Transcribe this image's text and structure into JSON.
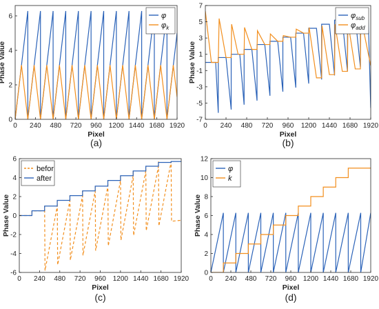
{
  "chart_data": [
    {
      "panel_label": "(a)",
      "type": "line",
      "xlabel": "Pixel",
      "ylabel": "Phase Value",
      "xlim": [
        0,
        1920
      ],
      "ylim": [
        0,
        6.6
      ],
      "xticks": [
        "0",
        "240",
        "480",
        "720",
        "960",
        "1200",
        "1440",
        "1680",
        "1920"
      ],
      "yticks": [
        "0",
        "2",
        "4",
        "6"
      ],
      "legend_position": "top-right",
      "grid": false,
      "series": [
        {
          "name": "φ",
          "color": "#2a62b8",
          "x": [
            0,
            150,
            150,
            300,
            300,
            450,
            450,
            600,
            600,
            750,
            750,
            900,
            900,
            1050,
            1050,
            1200,
            1200,
            1350,
            1350,
            1500,
            1500,
            1650,
            1650,
            1800,
            1800,
            1920
          ],
          "y": [
            0,
            6.28,
            0,
            6.28,
            0,
            6.28,
            0,
            6.28,
            0,
            6.28,
            0,
            6.28,
            0,
            6.28,
            0,
            6.28,
            0,
            6.28,
            0,
            6.28,
            0,
            6.28,
            0,
            6.28,
            0,
            5.0
          ]
        },
        {
          "name": "φk",
          "color": "#f28e1c",
          "x": [
            0,
            75,
            150,
            225,
            300,
            375,
            450,
            525,
            600,
            675,
            750,
            825,
            900,
            975,
            1050,
            1125,
            1200,
            1275,
            1350,
            1425,
            1500,
            1575,
            1650,
            1725,
            1800,
            1875,
            1920
          ],
          "y": [
            0,
            3.14,
            0,
            3.14,
            0,
            3.14,
            0,
            3.14,
            0,
            3.14,
            0,
            3.14,
            0,
            3.14,
            0,
            3.14,
            0,
            3.14,
            0,
            3.14,
            0,
            3.14,
            0,
            3.14,
            0,
            3.14,
            1.3
          ]
        }
      ]
    },
    {
      "panel_label": "(b)",
      "type": "line",
      "xlabel": "Pixel",
      "ylabel": "Phase Value",
      "xlim": [
        0,
        1920
      ],
      "ylim": [
        -7,
        7
      ],
      "xticks": [
        "0",
        "240",
        "480",
        "720",
        "960",
        "1200",
        "1440",
        "1680",
        "1920"
      ],
      "yticks": [
        "-7",
        "-5",
        "-3",
        "-1",
        "1",
        "3",
        "5",
        "7"
      ],
      "legend_position": "top-right",
      "grid": false,
      "series": [
        {
          "name": "φsub",
          "color": "#2a62b8",
          "x": [
            0,
            120,
            150,
            150,
            240,
            300,
            300,
            400,
            450,
            450,
            540,
            600,
            600,
            690,
            750,
            750,
            840,
            900,
            900,
            990,
            1050,
            1050,
            1140,
            1200,
            1200,
            1290,
            1350,
            1350,
            1440,
            1500,
            1500,
            1590,
            1650,
            1650,
            1740,
            1800,
            1800,
            1890,
            1920
          ],
          "y": [
            0,
            0,
            -6.2,
            0.6,
            0.6,
            -5.8,
            1.0,
            1.0,
            -5.2,
            1.6,
            1.6,
            -4.7,
            2.2,
            2.2,
            -4.1,
            2.6,
            2.6,
            -3.6,
            3.1,
            3.1,
            -3.1,
            3.6,
            3.6,
            -2.6,
            4.2,
            4.2,
            -2.1,
            4.7,
            4.7,
            -1.6,
            5.2,
            5.2,
            -1.1,
            5.6,
            5.6,
            -0.6,
            5.9,
            5.9,
            -5.6
          ]
        },
        {
          "name": "φadd",
          "color": "#f28e1c",
          "x": [
            0,
            70,
            150,
            160,
            240,
            300,
            305,
            380,
            450,
            455,
            540,
            600,
            605,
            690,
            750,
            755,
            840,
            900,
            905,
            990,
            1050,
            1055,
            1140,
            1200,
            1205,
            1290,
            1350,
            1355,
            1440,
            1500,
            1505,
            1590,
            1650,
            1655,
            1740,
            1800,
            1805,
            1920
          ],
          "y": [
            6.3,
            0,
            0,
            5.4,
            0.6,
            0.6,
            4.7,
            1.0,
            1.0,
            4.3,
            1.6,
            1.6,
            3.9,
            2.2,
            2.2,
            3.5,
            2.6,
            2.6,
            3.3,
            3.1,
            3.1,
            4.1,
            3.6,
            3.6,
            4.3,
            -1.9,
            -1.9,
            4.5,
            -1.5,
            -1.5,
            4.7,
            -1.1,
            -1.1,
            5.0,
            -0.8,
            -0.8,
            5.6,
            -0.4
          ]
        }
      ]
    },
    {
      "panel_label": "(c)",
      "type": "line",
      "xlabel": "Pixel",
      "ylabel": "Phase Value",
      "xlim": [
        0,
        1920
      ],
      "ylim": [
        -6,
        6
      ],
      "xticks": [
        "0",
        "240",
        "480",
        "720",
        "960",
        "1200",
        "1440",
        "1680",
        "1920"
      ],
      "yticks": [
        "-6",
        "-4",
        "-2",
        "0",
        "2",
        "4",
        "6"
      ],
      "legend_position": "top-left",
      "grid": false,
      "series": [
        {
          "name": "befor",
          "color": "#f28e1c",
          "dashed": true,
          "x": [
            0,
            150,
            150,
            300,
            300,
            305,
            450,
            450,
            455,
            600,
            600,
            605,
            750,
            750,
            755,
            900,
            900,
            905,
            1050,
            1050,
            1055,
            1200,
            1200,
            1205,
            1350,
            1350,
            1355,
            1500,
            1500,
            1505,
            1650,
            1650,
            1655,
            1800,
            1800,
            1805,
            1920
          ],
          "y": [
            0,
            0,
            0.5,
            0.5,
            1.0,
            -5.8,
            1.0,
            1.6,
            -5.2,
            1.6,
            2.1,
            -4.7,
            2.1,
            2.6,
            -4.2,
            2.6,
            3.1,
            -3.7,
            3.1,
            3.7,
            -3.2,
            3.7,
            4.2,
            -2.6,
            4.2,
            4.7,
            -2.1,
            4.7,
            5.2,
            -1.6,
            5.2,
            5.7,
            -1.1,
            5.7,
            5.7,
            -0.6,
            -0.5
          ]
        },
        {
          "name": "after",
          "color": "#2a62b8",
          "x": [
            0,
            150,
            150,
            300,
            300,
            450,
            450,
            600,
            600,
            750,
            750,
            900,
            900,
            1050,
            1050,
            1200,
            1200,
            1350,
            1350,
            1500,
            1500,
            1650,
            1650,
            1800,
            1800,
            1920
          ],
          "y": [
            0,
            0,
            0.5,
            0.5,
            1.0,
            1.0,
            1.6,
            1.6,
            2.1,
            2.1,
            2.6,
            2.6,
            3.1,
            3.1,
            3.7,
            3.7,
            4.2,
            4.2,
            4.7,
            4.7,
            5.2,
            5.2,
            5.6,
            5.6,
            5.7,
            5.7
          ]
        }
      ]
    },
    {
      "panel_label": "(d)",
      "type": "line",
      "xlabel": "Pixel",
      "ylabel": "Phase Value",
      "xlim": [
        0,
        1920
      ],
      "ylim": [
        0,
        12
      ],
      "xticks": [
        "0",
        "240",
        "480",
        "720",
        "960",
        "1200",
        "1440",
        "1680",
        "1920"
      ],
      "yticks": [
        "0",
        "2",
        "4",
        "6",
        "8",
        "10",
        "12"
      ],
      "legend_position": "top-left",
      "grid": false,
      "series": [
        {
          "name": "φ",
          "color": "#2a62b8",
          "x": [
            0,
            150,
            150,
            300,
            300,
            450,
            450,
            600,
            600,
            750,
            750,
            900,
            900,
            1050,
            1050,
            1200,
            1200,
            1350,
            1350,
            1500,
            1500,
            1650,
            1650,
            1800,
            1800,
            1920
          ],
          "y": [
            0,
            6.28,
            0,
            6.28,
            0,
            6.28,
            0,
            6.28,
            0,
            6.28,
            0,
            6.28,
            0,
            6.28,
            0,
            6.28,
            0,
            6.28,
            0,
            6.28,
            0,
            6.28,
            0,
            6.28,
            0,
            6.28
          ]
        },
        {
          "name": "k",
          "color": "#f28e1c",
          "x": [
            0,
            150,
            150,
            300,
            300,
            450,
            450,
            600,
            600,
            750,
            750,
            900,
            900,
            1050,
            1050,
            1200,
            1200,
            1350,
            1350,
            1500,
            1500,
            1650,
            1650,
            1800,
            1800,
            1920
          ],
          "y": [
            0,
            0,
            1,
            1,
            2,
            2,
            3,
            3,
            4,
            4,
            5,
            5,
            6,
            6,
            7,
            7,
            8,
            8,
            9,
            9,
            10,
            10,
            11,
            11,
            11,
            11
          ]
        }
      ]
    }
  ]
}
